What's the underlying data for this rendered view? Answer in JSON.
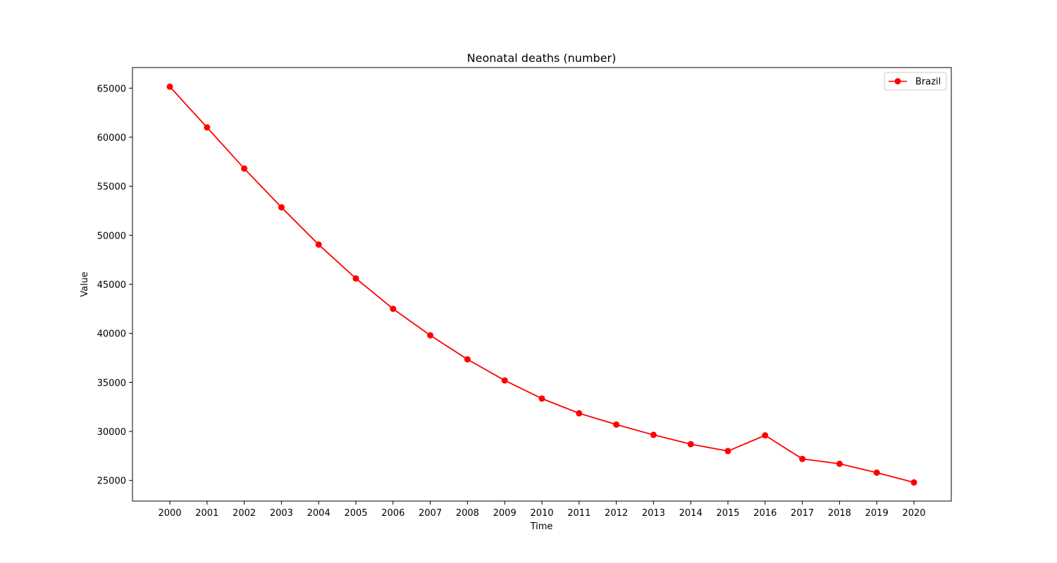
{
  "chart_data": {
    "type": "line",
    "title": "Neonatal deaths (number)",
    "xlabel": "Time",
    "ylabel": "Value",
    "x": [
      "2000",
      "2001",
      "2002",
      "2003",
      "2004",
      "2005",
      "2006",
      "2007",
      "2008",
      "2009",
      "2010",
      "2011",
      "2012",
      "2013",
      "2014",
      "2015",
      "2016",
      "2017",
      "2018",
      "2019",
      "2020"
    ],
    "series": [
      {
        "name": "Brazil",
        "color": "#ff0000",
        "marker": "circle",
        "values": [
          65150,
          61000,
          56800,
          52850,
          49050,
          45600,
          42500,
          39800,
          37350,
          35200,
          33350,
          31850,
          30700,
          29650,
          28700,
          28000,
          29600,
          27200,
          26700,
          25800,
          24800
        ]
      }
    ],
    "yticks": [
      "25000",
      "30000",
      "35000",
      "40000",
      "45000",
      "50000",
      "55000",
      "60000",
      "65000"
    ],
    "ylim": [
      22900,
      67100
    ],
    "legend_position": "top-right",
    "grid": false
  }
}
